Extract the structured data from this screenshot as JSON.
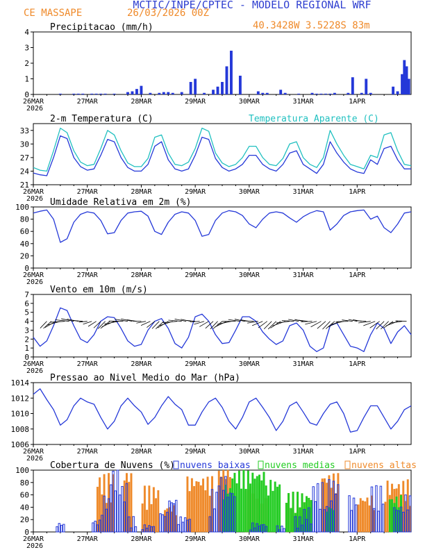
{
  "header": {
    "title": "MCTIC/INPE/CPTEC - MODELO REGIONAL WRF",
    "location": "CE MASSAPE",
    "run": "26/03/2026 00Z",
    "coords": "40.3428W 3.5228S 83m"
  },
  "colors": {
    "title": "#2f3fd0",
    "orange": "#ef8a2a",
    "blue": "#2438d8",
    "cyan": "#20c0c0",
    "green": "#22cc22",
    "frame": "#000000"
  },
  "x_axis": {
    "days": [
      "26MAR",
      "27MAR",
      "28MAR",
      "29MAR",
      "30MAR",
      "31MAR",
      "1APR"
    ],
    "year": "2026",
    "hours_total": 168
  },
  "chart_data": [
    {
      "id": "precip",
      "type": "bar",
      "title": "Precipitacao (mm/h)",
      "ylim": [
        0,
        4
      ],
      "yticks": [
        "0",
        "1",
        "2",
        "3",
        "4"
      ],
      "series": [
        {
          "name": "precip",
          "x": [
            12,
            18,
            20,
            22,
            26,
            28,
            30,
            32,
            36,
            42,
            44,
            46,
            48,
            52,
            56,
            58,
            60,
            62,
            66,
            70,
            72,
            76,
            80,
            82,
            84,
            86,
            88,
            92,
            100,
            102,
            104,
            110,
            112,
            118,
            124,
            126,
            128,
            130,
            132,
            134,
            140,
            142,
            146,
            148,
            150,
            160,
            162,
            164,
            165,
            166,
            167
          ],
          "values": [
            0.05,
            0.05,
            0.05,
            0.05,
            0.05,
            0.05,
            0.05,
            0.05,
            0.05,
            0.15,
            0.2,
            0.35,
            0.55,
            0.1,
            0.1,
            0.15,
            0.15,
            0.1,
            0.15,
            0.8,
            1.0,
            0.1,
            0.3,
            0.5,
            0.8,
            1.8,
            2.8,
            1.2,
            0.2,
            0.1,
            0.1,
            0.3,
            0.1,
            0.05,
            0.1,
            0.05,
            0.05,
            0.05,
            0.05,
            0.1,
            0.1,
            1.1,
            0.1,
            1.0,
            0.1,
            0.5,
            0.2,
            1.3,
            2.2,
            1.8,
            1.0
          ]
        }
      ]
    },
    {
      "id": "temp",
      "type": "line",
      "title": "2-m Temperatura (C)",
      "legend": "Temperatura Aparente (C)",
      "ylim": [
        21,
        34.5
      ],
      "yticks": [
        "21",
        "24",
        "27",
        "30",
        "33"
      ],
      "series": [
        {
          "name": "Temperatura",
          "color": "blue",
          "x": [
            0,
            3,
            6,
            9,
            12,
            15,
            18,
            21,
            24,
            27,
            30,
            33,
            36,
            39,
            42,
            45,
            48,
            51,
            54,
            57,
            60,
            63,
            66,
            69,
            72,
            75,
            78,
            81,
            84,
            87,
            90,
            93,
            96,
            99,
            102,
            105,
            108,
            111,
            114,
            117,
            120,
            123,
            126,
            129,
            132,
            135,
            138,
            141,
            144,
            147,
            150,
            153,
            156,
            159,
            162,
            165,
            168
          ],
          "values": [
            23.6,
            23.2,
            23.0,
            27.0,
            31.8,
            31.2,
            27.0,
            25.0,
            24.2,
            24.5,
            27.5,
            31.0,
            30.5,
            27.0,
            24.8,
            24.0,
            24.0,
            25.5,
            29.5,
            30.5,
            26.5,
            24.5,
            24.0,
            24.5,
            27.5,
            31.5,
            31.0,
            26.8,
            24.8,
            24.0,
            24.5,
            25.5,
            27.5,
            27.5,
            25.5,
            24.5,
            24.0,
            25.5,
            28.0,
            28.5,
            25.5,
            24.5,
            23.5,
            25.5,
            30.5,
            28.0,
            26.0,
            24.5,
            23.8,
            23.5,
            26.5,
            25.5,
            29.0,
            29.5,
            26.5,
            24.5,
            24.5
          ]
        },
        {
          "name": "Temperatura Aparente",
          "color": "cyan",
          "x": [
            0,
            3,
            6,
            9,
            12,
            15,
            18,
            21,
            24,
            27,
            30,
            33,
            36,
            39,
            42,
            45,
            48,
            51,
            54,
            57,
            60,
            63,
            66,
            69,
            72,
            75,
            78,
            81,
            84,
            87,
            90,
            93,
            96,
            99,
            102,
            105,
            108,
            111,
            114,
            117,
            120,
            123,
            126,
            129,
            132,
            135,
            138,
            141,
            144,
            147,
            150,
            153,
            156,
            159,
            162,
            165,
            168
          ],
          "values": [
            24.8,
            24.2,
            24.0,
            28.5,
            33.5,
            32.5,
            28.5,
            26.0,
            25.2,
            25.5,
            29.0,
            33.0,
            32.0,
            28.5,
            25.8,
            25.0,
            25.0,
            26.8,
            31.5,
            32.0,
            28.0,
            25.5,
            25.2,
            26.0,
            29.0,
            33.5,
            32.8,
            28.0,
            25.8,
            25.0,
            25.5,
            27.0,
            29.5,
            29.5,
            27.0,
            25.5,
            25.2,
            26.8,
            30.0,
            30.5,
            27.0,
            25.5,
            24.8,
            27.0,
            33.0,
            30.0,
            27.5,
            25.5,
            25.0,
            24.5,
            27.5,
            27.0,
            32.0,
            32.5,
            28.5,
            25.5,
            25.2
          ]
        }
      ]
    },
    {
      "id": "rh",
      "type": "line",
      "title": "Umidade Relativa em 2m (%)",
      "ylim": [
        0,
        100
      ],
      "yticks": [
        "0",
        "20",
        "40",
        "60",
        "80",
        "100"
      ],
      "series": [
        {
          "name": "UR",
          "color": "blue",
          "x": [
            0,
            3,
            6,
            9,
            12,
            15,
            18,
            21,
            24,
            27,
            30,
            33,
            36,
            39,
            42,
            45,
            48,
            51,
            54,
            57,
            60,
            63,
            66,
            69,
            72,
            75,
            78,
            81,
            84,
            87,
            90,
            93,
            96,
            99,
            102,
            105,
            108,
            111,
            114,
            117,
            120,
            123,
            126,
            129,
            132,
            135,
            138,
            141,
            144,
            147,
            150,
            153,
            156,
            159,
            162,
            165,
            168
          ],
          "values": [
            90,
            93,
            95,
            80,
            42,
            48,
            75,
            88,
            92,
            90,
            78,
            56,
            58,
            78,
            90,
            92,
            93,
            85,
            60,
            55,
            75,
            88,
            92,
            90,
            78,
            52,
            55,
            78,
            90,
            94,
            92,
            86,
            72,
            66,
            80,
            90,
            92,
            90,
            82,
            75,
            84,
            90,
            94,
            92,
            62,
            72,
            86,
            92,
            94,
            95,
            80,
            85,
            66,
            58,
            72,
            90,
            92
          ]
        }
      ]
    },
    {
      "id": "wind",
      "type": "line",
      "title": "Vento em 10m (m/s)",
      "ylim": [
        0,
        7
      ],
      "yticks": [
        "0",
        "1",
        "2",
        "3",
        "4",
        "5",
        "6",
        "7"
      ],
      "series": [
        {
          "name": "Vento",
          "color": "blue",
          "x": [
            0,
            3,
            6,
            9,
            12,
            15,
            18,
            21,
            24,
            27,
            30,
            33,
            36,
            39,
            42,
            45,
            48,
            51,
            54,
            57,
            60,
            63,
            66,
            69,
            72,
            75,
            78,
            81,
            84,
            87,
            90,
            93,
            96,
            99,
            102,
            105,
            108,
            111,
            114,
            117,
            120,
            123,
            126,
            129,
            132,
            135,
            138,
            141,
            144,
            147,
            150,
            153,
            156,
            159,
            162,
            165,
            168
          ],
          "values": [
            2.2,
            1.2,
            1.8,
            3.5,
            5.5,
            5.2,
            3.5,
            2.0,
            1.6,
            2.5,
            4.0,
            4.5,
            4.4,
            3.2,
            1.8,
            1.2,
            1.4,
            3.0,
            4.0,
            4.3,
            3.2,
            1.5,
            1.0,
            2.2,
            4.5,
            4.8,
            4.0,
            2.5,
            1.5,
            1.6,
            3.0,
            4.5,
            4.5,
            4.0,
            2.8,
            2.0,
            1.4,
            1.8,
            3.5,
            3.8,
            3.0,
            1.2,
            0.6,
            1.0,
            3.5,
            3.8,
            2.5,
            1.2,
            1.0,
            0.6,
            2.5,
            3.8,
            3.2,
            1.5,
            2.8,
            3.5,
            2.5
          ]
        }
      ]
    },
    {
      "id": "press",
      "type": "line",
      "title": "Pressao ao Nivel Medio do Mar (hPa)",
      "ylim": [
        1006,
        1014
      ],
      "yticks": [
        "1006",
        "1008",
        "1010",
        "1012",
        "1014"
      ],
      "series": [
        {
          "name": "PNMM",
          "color": "blue",
          "x": [
            0,
            3,
            6,
            9,
            12,
            15,
            18,
            21,
            24,
            27,
            30,
            33,
            36,
            39,
            42,
            45,
            48,
            51,
            54,
            57,
            60,
            63,
            66,
            69,
            72,
            75,
            78,
            81,
            84,
            87,
            90,
            93,
            96,
            99,
            102,
            105,
            108,
            111,
            114,
            117,
            120,
            123,
            126,
            129,
            132,
            135,
            138,
            141,
            144,
            147,
            150,
            153,
            156,
            159,
            162,
            165,
            168
          ],
          "values": [
            1012.5,
            1013.2,
            1011.8,
            1010.5,
            1008.5,
            1009.2,
            1011.0,
            1012.0,
            1011.5,
            1011.2,
            1009.5,
            1008.0,
            1009.0,
            1011.0,
            1012.0,
            1011.0,
            1010.2,
            1008.6,
            1009.5,
            1011.0,
            1012.2,
            1011.2,
            1010.5,
            1008.5,
            1008.5,
            1010.2,
            1011.5,
            1012.0,
            1010.8,
            1009.0,
            1008.0,
            1009.5,
            1011.5,
            1012.0,
            1010.8,
            1009.5,
            1007.8,
            1009.0,
            1011.0,
            1011.5,
            1010.2,
            1008.8,
            1008.5,
            1010.0,
            1011.2,
            1011.5,
            1010.0,
            1007.6,
            1007.8,
            1009.5,
            1011.0,
            1011.0,
            1009.5,
            1008.0,
            1009.0,
            1010.5,
            1011.0
          ]
        }
      ]
    },
    {
      "id": "cloud",
      "type": "bar",
      "title": "Cobertura de Nuvens (%)",
      "legend": [
        "nuvens baixas",
        "nuvens medias",
        "nuvens altas"
      ],
      "ylim": [
        0,
        100
      ],
      "yticks": [
        "0",
        "20",
        "40",
        "60",
        "80",
        "100"
      ],
      "series": [
        {
          "name": "nuvens altas",
          "color": "orange",
          "ranges": [
            [
              28,
              36,
              40,
              95
            ],
            [
              40,
              44,
              80,
              95
            ],
            [
              48,
              56,
              35,
              75
            ],
            [
              58,
              64,
              20,
              45
            ],
            [
              68,
              80,
              55,
              90
            ],
            [
              82,
              88,
              85,
              100
            ],
            [
              94,
              104,
              45,
              80
            ],
            [
              112,
              124,
              30,
              65
            ],
            [
              128,
              136,
              60,
              95
            ],
            [
              144,
              152,
              30,
              60
            ],
            [
              156,
              168,
              40,
              85
            ]
          ]
        },
        {
          "name": "nuvens medias",
          "color": "green",
          "ranges": [
            [
              84,
              88,
              40,
              80
            ],
            [
              88,
              104,
              65,
              100
            ],
            [
              104,
              110,
              55,
              85
            ],
            [
              112,
              124,
              30,
              65
            ],
            [
              130,
              134,
              20,
              45
            ],
            [
              158,
              164,
              30,
              60
            ]
          ]
        },
        {
          "name": "nuvens baixas",
          "color": "blue",
          "ranges": [
            [
              10,
              14,
              5,
              15
            ],
            [
              26,
              30,
              5,
              20
            ],
            [
              30,
              34,
              20,
              60
            ],
            [
              34,
              38,
              60,
              100
            ],
            [
              38,
              42,
              30,
              80
            ],
            [
              42,
              46,
              5,
              25
            ],
            [
              48,
              54,
              2,
              12
            ],
            [
              56,
              60,
              10,
              35
            ],
            [
              60,
              64,
              30,
              55
            ],
            [
              64,
              70,
              10,
              25
            ],
            [
              78,
              82,
              20,
              70
            ],
            [
              82,
              86,
              60,
              90
            ],
            [
              86,
              90,
              40,
              70
            ],
            [
              96,
              104,
              2,
              15
            ],
            [
              108,
              112,
              2,
              10
            ],
            [
              116,
              120,
              5,
              25
            ],
            [
              120,
              124,
              10,
              40
            ],
            [
              124,
              130,
              30,
              80
            ],
            [
              130,
              136,
              40,
              85
            ],
            [
              140,
              144,
              20,
              60
            ],
            [
              150,
              156,
              30,
              75
            ],
            [
              160,
              164,
              15,
              45
            ],
            [
              164,
              168,
              30,
              60
            ]
          ]
        }
      ]
    }
  ]
}
